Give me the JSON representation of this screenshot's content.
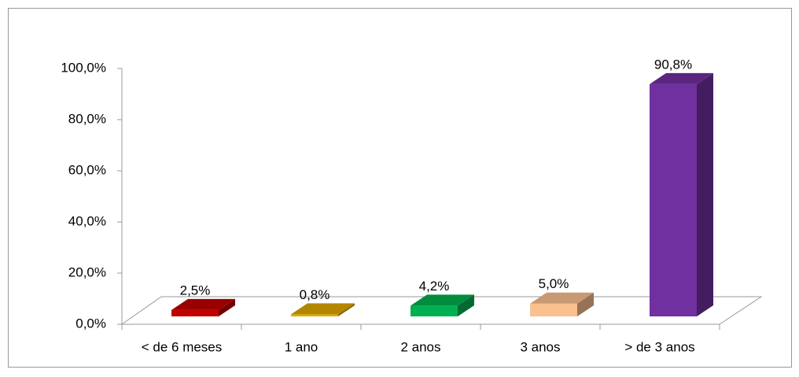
{
  "chart_data": {
    "type": "bar3d",
    "categories": [
      "< de 6 meses",
      "1 ano",
      "2 anos",
      "3 anos",
      "> de 3 anos"
    ],
    "values": [
      2.5,
      0.8,
      4.2,
      5.0,
      90.8
    ],
    "value_labels": [
      "2,5%",
      "0,8%",
      "4,2%",
      "5,0%",
      "90,8%"
    ],
    "colors": [
      "#c00000",
      "#e0a800",
      "#00b050",
      "#fac090",
      "#7030a0"
    ],
    "ylim": [
      0,
      100
    ],
    "yticks": [
      {
        "value": 0,
        "label": "0,0%"
      },
      {
        "value": 20,
        "label": "20,0%"
      },
      {
        "value": 40,
        "label": "40,0%"
      },
      {
        "value": 60,
        "label": "60,0%"
      },
      {
        "value": 80,
        "label": "80,0%"
      },
      {
        "value": 100,
        "label": "100,0%"
      }
    ]
  }
}
